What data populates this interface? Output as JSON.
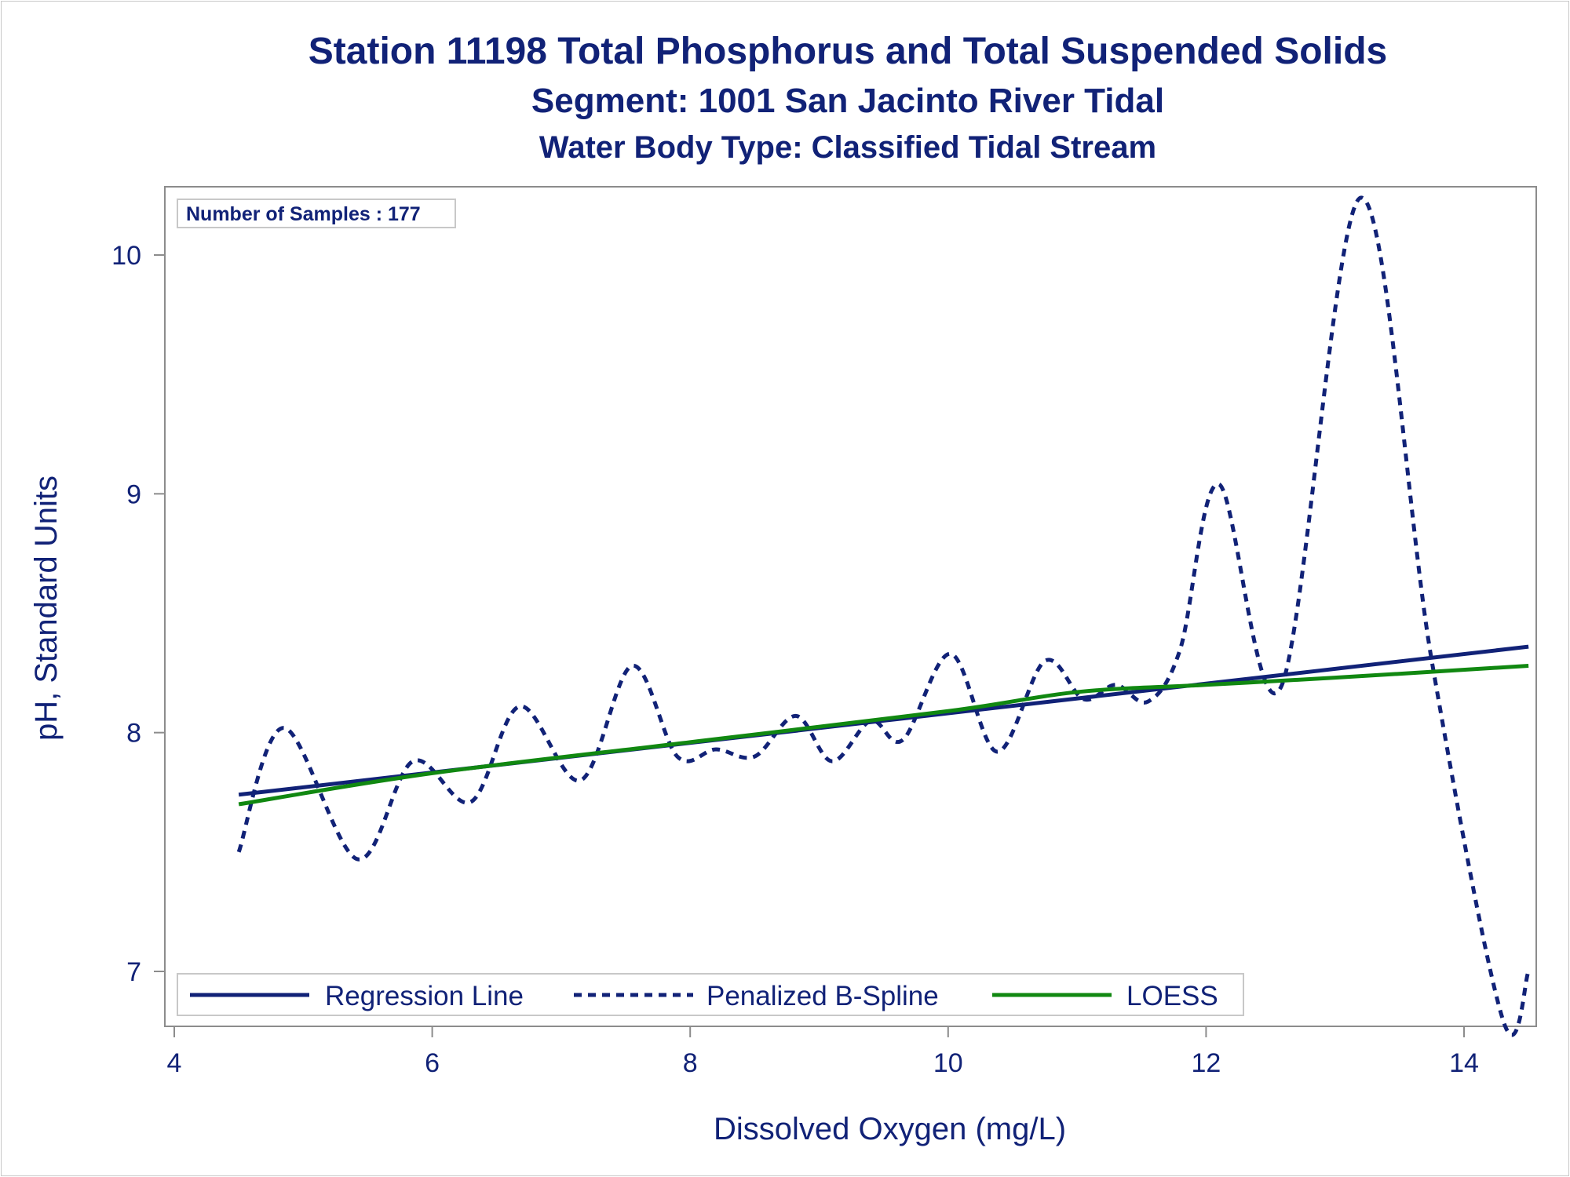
{
  "titles": {
    "title": "Station 11198  Total Phosphorus and Total Suspended Solids",
    "subtitle": "Segment: 1001  San Jacinto River Tidal",
    "subtitle2": "Water Body Type: Classified Tidal Stream"
  },
  "inset": {
    "text": "Number of Samples : 177"
  },
  "chart_data": {
    "type": "line",
    "xlabel": "Dissolved Oxygen (mg/L)",
    "ylabel": "pH, Standard Units",
    "xlim": [
      4,
      14.5
    ],
    "ylim": [
      6.77,
      10.3
    ],
    "xticks": [
      4,
      6,
      8,
      10,
      12,
      14
    ],
    "yticks": [
      7,
      8,
      9,
      10
    ],
    "grid": false,
    "legend_position": "bottom-left inside",
    "colors": {
      "regression": "#112277",
      "spline": "#112277",
      "loess": "#118811",
      "text": "#112277",
      "axis": "#8c8c8c"
    },
    "series": [
      {
        "name": "Regression Line",
        "style": "solid",
        "color": "#112277",
        "x": [
          4.5,
          14.5
        ],
        "y": [
          7.74,
          8.36
        ]
      },
      {
        "name": "Penalized B-Spline",
        "style": "dashed",
        "color": "#112277",
        "x": [
          4.5,
          4.85,
          5.42,
          5.85,
          6.3,
          6.68,
          7.15,
          7.55,
          7.9,
          8.2,
          8.5,
          8.82,
          9.1,
          9.4,
          9.65,
          10.02,
          10.38,
          10.75,
          11.05,
          11.3,
          11.55,
          11.8,
          12.1,
          12.58,
          13.2,
          13.75,
          14.3,
          14.5
        ],
        "y": [
          7.5,
          8.02,
          7.47,
          7.88,
          7.71,
          8.11,
          7.8,
          8.28,
          7.9,
          7.93,
          7.9,
          8.07,
          7.88,
          8.05,
          7.97,
          8.33,
          7.92,
          8.3,
          8.14,
          8.2,
          8.13,
          8.35,
          9.04,
          8.19,
          10.24,
          8.3,
          6.8,
          7.0
        ]
      },
      {
        "name": "LOESS",
        "style": "solid",
        "color": "#118811",
        "x": [
          4.5,
          6,
          8,
          10,
          11,
          12,
          13,
          14.5
        ],
        "y": [
          7.7,
          7.83,
          7.96,
          8.09,
          8.17,
          8.2,
          8.23,
          8.28
        ]
      }
    ]
  }
}
